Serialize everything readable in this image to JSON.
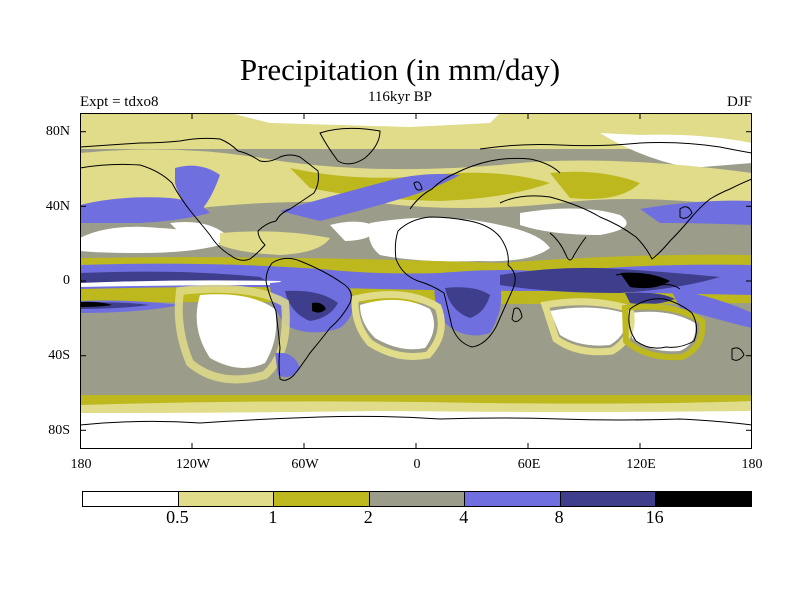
{
  "title": "Precipitation (in mm/day)",
  "experiment": "Expt = tdxo8",
  "period": "116kyr BP",
  "season": "DJF",
  "y_ticks": [
    "80N",
    "40N",
    "0",
    "40S",
    "80S"
  ],
  "x_ticks": [
    "180",
    "120W",
    "60W",
    "0",
    "60E",
    "120E",
    "180"
  ],
  "colorbar": {
    "levels": [
      "0.5",
      "1",
      "2",
      "4",
      "8",
      "16"
    ],
    "colors": [
      "#ffffff",
      "#e0dc8a",
      "#bdb81e",
      "#9c9c8a",
      "#6f6fe0",
      "#3e3e8c",
      "#000000"
    ]
  },
  "palette": {
    "ocean_land_base": "#9c9c8a",
    "coastline": "#000000"
  }
}
